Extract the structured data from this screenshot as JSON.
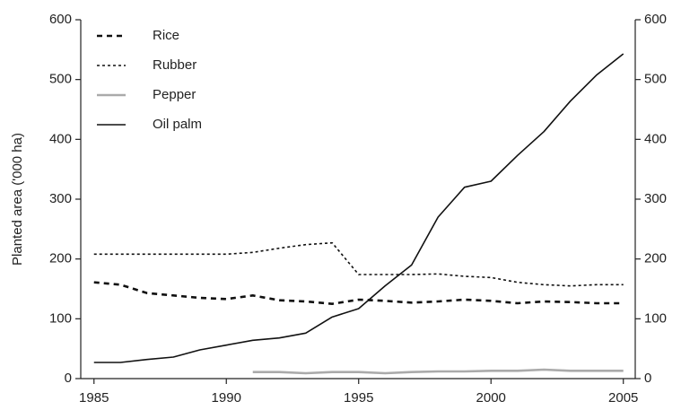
{
  "chart_data": {
    "type": "line",
    "y_label": "Planted area ('000 ha)",
    "x": [
      1985,
      1986,
      1987,
      1988,
      1989,
      1990,
      1991,
      1992,
      1993,
      1994,
      1995,
      1996,
      1997,
      1998,
      1999,
      2000,
      2001,
      2002,
      2003,
      2004,
      2005
    ],
    "series": [
      {
        "name": "Rice",
        "color": "#111111",
        "dash": "6 5",
        "width": 2.6,
        "values": [
          161,
          157,
          143,
          139,
          135,
          133,
          139,
          131,
          129,
          125,
          132,
          130,
          127,
          129,
          132,
          130,
          126,
          129,
          128,
          126,
          126
        ]
      },
      {
        "name": "Rubber",
        "color": "#111111",
        "dash": "3 3",
        "width": 1.6,
        "values": [
          208,
          208,
          208,
          208,
          208,
          208,
          211,
          218,
          224,
          227,
          174,
          174,
          174,
          175,
          171,
          169,
          161,
          157,
          155,
          157,
          157
        ]
      },
      {
        "name": "Pepper",
        "color": "#aaaaaa",
        "dash": "none",
        "width": 2.6,
        "values": [
          null,
          null,
          null,
          null,
          null,
          null,
          11,
          11,
          9,
          11,
          11,
          9,
          11,
          12,
          12,
          13,
          13,
          15,
          13,
          13,
          13
        ]
      },
      {
        "name": "Oil palm",
        "color": "#111111",
        "dash": "none",
        "width": 1.6,
        "values": [
          27,
          27,
          32,
          36,
          48,
          56,
          64,
          68,
          76,
          103,
          117,
          155,
          190,
          270,
          320,
          330,
          373,
          413,
          464,
          508,
          543
        ]
      }
    ],
    "xlim": [
      1984.5,
      2005.45
    ],
    "xticks": [
      1985,
      1990,
      1995,
      2000,
      2005
    ],
    "ylim": [
      0,
      600
    ],
    "yticks": [
      0,
      100,
      200,
      300,
      400,
      500,
      600
    ],
    "y2lim": [
      0,
      600
    ],
    "y2ticks": [
      0,
      100,
      200,
      300,
      400,
      500,
      600
    ],
    "legend": "top-left",
    "grid": false
  }
}
